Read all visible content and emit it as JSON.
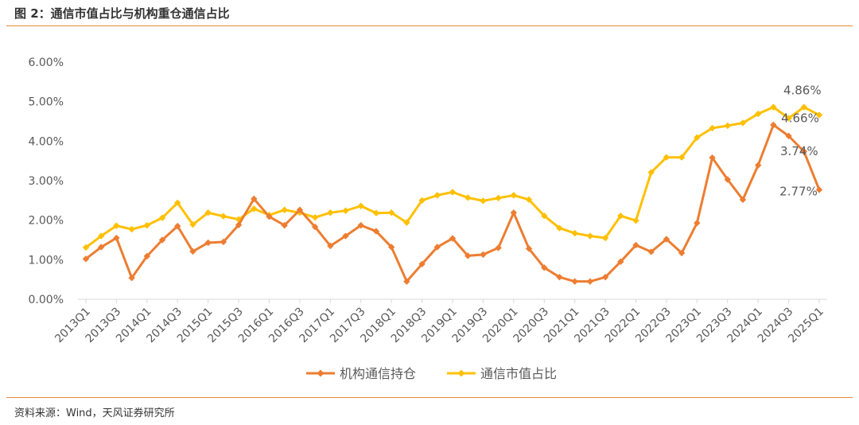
{
  "figure": {
    "title": "图 2：通信市值占比与机构重仓通信占比",
    "source": "资料来源：Wind，天风证券研究所"
  },
  "colors": {
    "rule": "#e58a3a",
    "institution": "#ed7d31",
    "market": "#ffc000",
    "axis": "#d9d9d9",
    "text": "#595959"
  },
  "chart_data": {
    "type": "line",
    "title": "",
    "xlabel": "",
    "ylabel": "",
    "ylim": [
      0,
      0.06
    ],
    "yticks": [
      "0.00%",
      "1.00%",
      "2.00%",
      "3.00%",
      "4.00%",
      "5.00%",
      "6.00%"
    ],
    "grid": false,
    "legend": "bottom",
    "markers": "diamond",
    "categories": [
      "2013Q1",
      "2013Q2",
      "2013Q3",
      "2013Q4",
      "2014Q1",
      "2014Q2",
      "2014Q3",
      "2014Q4",
      "2015Q1",
      "2015Q2",
      "2015Q3",
      "2015Q4",
      "2016Q1",
      "2016Q2",
      "2016Q3",
      "2016Q4",
      "2017Q1",
      "2017Q2",
      "2017Q3",
      "2017Q4",
      "2018Q1",
      "2018Q2",
      "2018Q3",
      "2018Q4",
      "2019Q1",
      "2019Q2",
      "2019Q3",
      "2019Q4",
      "2020Q1",
      "2020Q2",
      "2020Q3",
      "2020Q4",
      "2021Q1",
      "2021Q2",
      "2021Q3",
      "2021Q4",
      "2022Q1",
      "2022Q2",
      "2022Q3",
      "2022Q4",
      "2023Q1",
      "2023Q2",
      "2023Q3",
      "2023Q4",
      "2024Q1",
      "2024Q2",
      "2024Q3",
      "2024Q4",
      "2025Q1"
    ],
    "tick_labels": [
      "2013Q1",
      "2013Q3",
      "2014Q1",
      "2014Q3",
      "2015Q1",
      "2015Q3",
      "2016Q1",
      "2016Q3",
      "2017Q1",
      "2017Q3",
      "2018Q1",
      "2018Q3",
      "2019Q1",
      "2019Q3",
      "2020Q1",
      "2020Q3",
      "2021Q1",
      "2021Q3",
      "2022Q1",
      "2022Q3",
      "2023Q1",
      "2023Q3",
      "2024Q1",
      "2024Q3",
      "2025Q1"
    ],
    "series": [
      {
        "name": "机构通信持仓",
        "color": "#ed7d31",
        "values": [
          0.0102,
          0.0132,
          0.0155,
          0.0054,
          0.0109,
          0.015,
          0.0185,
          0.0121,
          0.0143,
          0.0145,
          0.0188,
          0.0254,
          0.0209,
          0.0187,
          0.0226,
          0.0183,
          0.0135,
          0.016,
          0.0187,
          0.0172,
          0.0132,
          0.0045,
          0.0089,
          0.0132,
          0.0154,
          0.011,
          0.0113,
          0.013,
          0.0219,
          0.0128,
          0.008,
          0.0056,
          0.0045,
          0.0045,
          0.0056,
          0.0095,
          0.0137,
          0.012,
          0.0152,
          0.0117,
          0.0193,
          0.0358,
          0.0303,
          0.0252,
          0.0339,
          0.0441,
          0.0413,
          0.0374,
          0.0277
        ]
      },
      {
        "name": "通信市值占比",
        "color": "#ffc000",
        "values": [
          0.0131,
          0.016,
          0.0186,
          0.0177,
          0.0187,
          0.0206,
          0.0244,
          0.0189,
          0.0219,
          0.021,
          0.0202,
          0.0229,
          0.0213,
          0.0226,
          0.0219,
          0.0207,
          0.0219,
          0.0224,
          0.0236,
          0.0218,
          0.0219,
          0.0194,
          0.025,
          0.0263,
          0.0271,
          0.0257,
          0.0249,
          0.0256,
          0.0263,
          0.0252,
          0.0211,
          0.018,
          0.0167,
          0.016,
          0.0155,
          0.0211,
          0.0199,
          0.0321,
          0.0359,
          0.0359,
          0.0409,
          0.0433,
          0.0439,
          0.0446,
          0.0469,
          0.0486,
          0.0458,
          0.0486,
          0.0466
        ]
      }
    ],
    "annotations": [
      {
        "series": 1,
        "index": 47,
        "text": "4.86%"
      },
      {
        "series": 1,
        "index": 48,
        "text": "4.66%"
      },
      {
        "series": 0,
        "index": 47,
        "text": "3.74%"
      },
      {
        "series": 0,
        "index": 48,
        "text": "2.77%"
      }
    ]
  }
}
